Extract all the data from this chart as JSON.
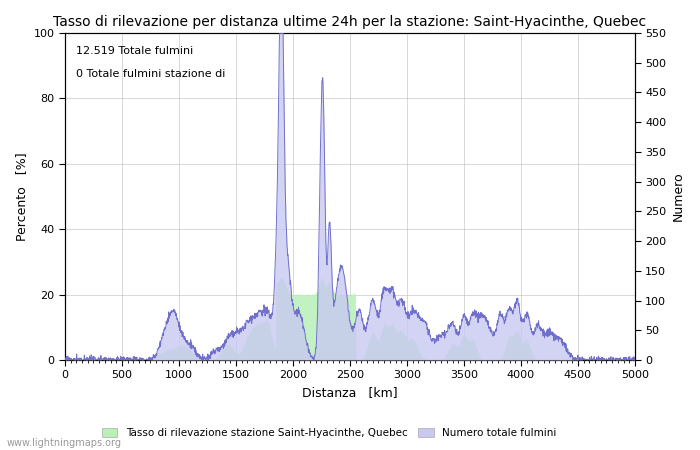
{
  "title": "Tasso di rilevazione per distanza ultime 24h per la stazione: Saint-Hyacinthe, Quebec",
  "annotation_line1": "12.519 Totale fulmini",
  "annotation_line2": "0 Totale fulmini stazione di",
  "xlabel": "Distanza   [km]",
  "ylabel_left": "Percento   [%]",
  "ylabel_right": "Numero",
  "xlim": [
    0,
    5000
  ],
  "ylim_left": [
    0,
    100
  ],
  "ylim_right": [
    0,
    550
  ],
  "xticks": [
    0,
    500,
    1000,
    1500,
    2000,
    2500,
    3000,
    3500,
    4000,
    4500,
    5000
  ],
  "yticks_left": [
    0,
    20,
    40,
    60,
    80,
    100
  ],
  "yticks_right": [
    0,
    50,
    100,
    150,
    200,
    250,
    300,
    350,
    400,
    450,
    500,
    550
  ],
  "legend_label_green": "Tasso di rilevazione stazione Saint-Hyacinthe, Quebec",
  "legend_label_blue": "Numero totale fulmini",
  "watermark": "www.lightningmaps.org",
  "fill_green_color": "#b8f0b8",
  "fill_blue_color": "#c8c8f0",
  "line_color": "#7070cc",
  "background_color": "#ffffff",
  "grid_color": "#bbbbbb",
  "title_fontsize": 10,
  "label_fontsize": 9,
  "tick_fontsize": 8,
  "annotation_fontsize": 8
}
